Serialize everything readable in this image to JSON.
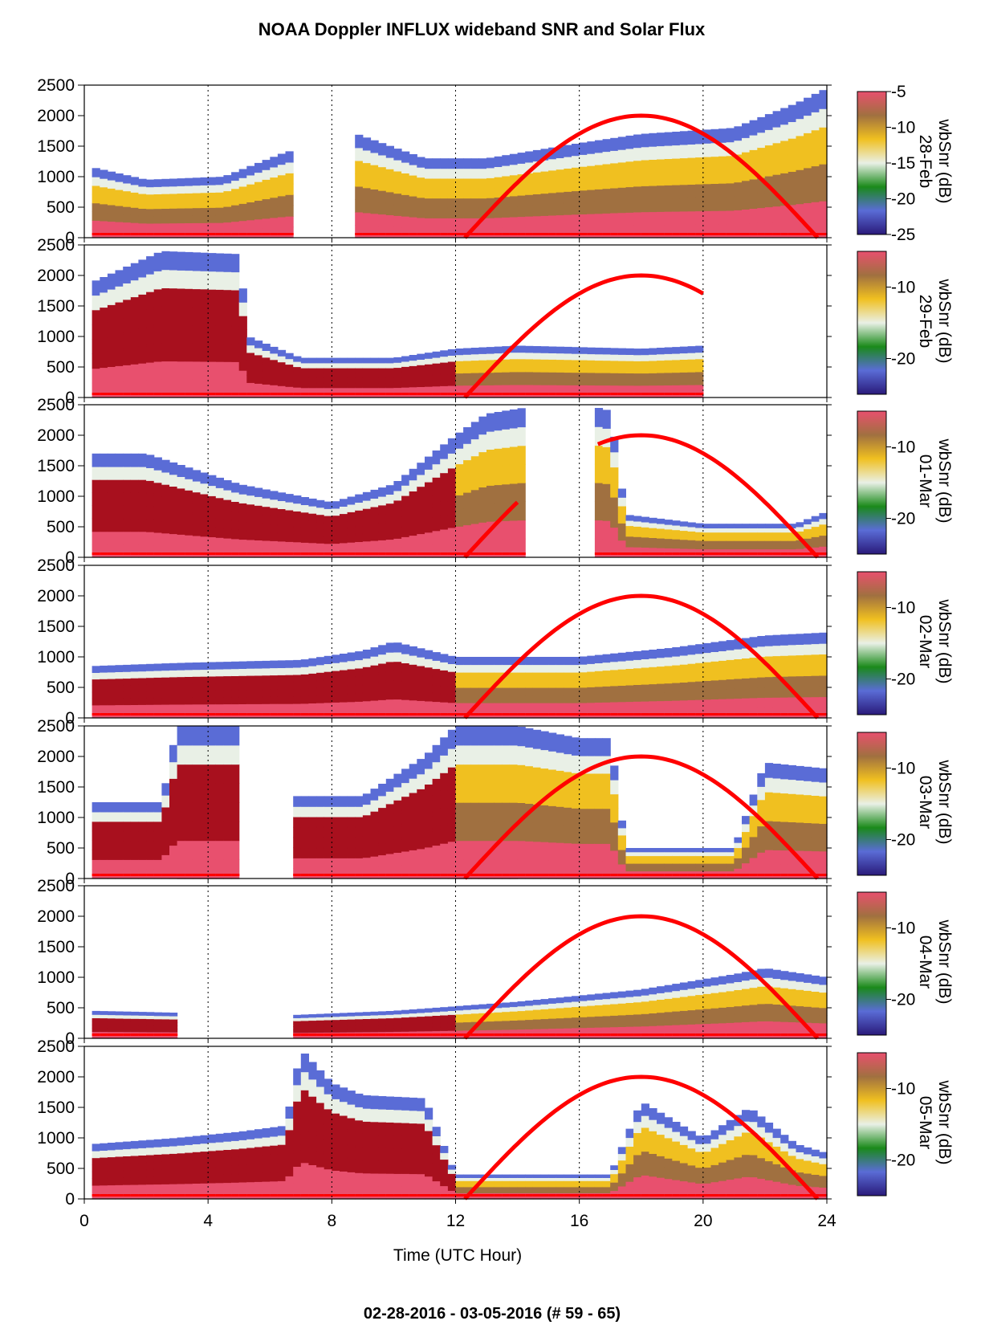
{
  "chart_data": {
    "type": "heatmap",
    "title": "NOAA Doppler INFLUX wideband SNR and Solar Flux",
    "footer": "02-28-2016 - 03-05-2016   (# 59 - 65)",
    "xlabel": "Time (UTC Hour)",
    "xlim": [
      0,
      24
    ],
    "xticks": [
      "0",
      "4",
      "8",
      "12",
      "16",
      "20",
      "24"
    ],
    "ylim": [
      0,
      2500
    ],
    "yticks": [
      "0",
      "500",
      "1000",
      "1500",
      "2000",
      "2500"
    ],
    "vertical_gridlines": [
      4,
      8,
      12,
      16,
      20
    ],
    "colorbar": {
      "quantity": "wbSnr (dB)",
      "range": [
        -25,
        -5
      ],
      "first_panel_ticks": [
        "-5",
        "-10",
        "-15",
        "-20",
        "-25"
      ],
      "other_panel_ticks": [
        "-10",
        "-20"
      ],
      "colors": [
        "#2a1a7a",
        "#5a6cd6",
        "#1a8a1a",
        "#e9f0e6",
        "#f0c020",
        "#a07040",
        "#e8506e",
        "#a8101e"
      ]
    },
    "solar_flux_curve": {
      "color": "#ff0000",
      "start_hour": 12.3,
      "peak_hour": 18,
      "end_hour": 23.7,
      "peak_value": 2000
    },
    "panels": [
      {
        "date": "28-Feb",
        "coverage_hours": [
          [
            0.3,
            6.7
          ],
          [
            8.8,
            24
          ]
        ],
        "top_height_profile": [
          [
            0.3,
            1150
          ],
          [
            2,
            950
          ],
          [
            4.5,
            1000
          ],
          [
            6.5,
            1400
          ],
          [
            8.8,
            1700
          ],
          [
            11,
            1300
          ],
          [
            13,
            1300
          ],
          [
            16,
            1550
          ],
          [
            18,
            1700
          ],
          [
            21,
            1800
          ],
          [
            23,
            2200
          ],
          [
            24,
            2450
          ]
        ],
        "curve_visible_hours": [
          12.3,
          23.7
        ]
      },
      {
        "date": "29-Feb",
        "coverage_hours": [
          [
            0.3,
            20
          ]
        ],
        "top_height_profile": [
          [
            0.3,
            1900
          ],
          [
            2.5,
            2400
          ],
          [
            5,
            2350
          ],
          [
            5.3,
            1000
          ],
          [
            7,
            650
          ],
          [
            10,
            650
          ],
          [
            12,
            800
          ],
          [
            14,
            850
          ],
          [
            18,
            800
          ],
          [
            20,
            850
          ]
        ],
        "curve_visible_hours": [
          12.3,
          20
        ]
      },
      {
        "date": "01-Mar",
        "coverage_hours": [
          [
            0.3,
            14.2
          ],
          [
            16.6,
            24
          ]
        ],
        "top_height_profile": [
          [
            0.3,
            1700
          ],
          [
            2,
            1700
          ],
          [
            5,
            1200
          ],
          [
            8,
            900
          ],
          [
            10,
            1200
          ],
          [
            12,
            2000
          ],
          [
            13,
            2350
          ],
          [
            14.2,
            2450
          ],
          [
            16.6,
            2450
          ],
          [
            17,
            2400
          ],
          [
            17.5,
            700
          ],
          [
            20,
            550
          ],
          [
            23,
            550
          ],
          [
            24,
            750
          ]
        ],
        "curve_visible_hours": [
          12.3,
          14
        ],
        "curve_visible_hours_2": [
          16.6,
          23.7
        ]
      },
      {
        "date": "02-Mar",
        "coverage_hours": [
          [
            0.3,
            24
          ]
        ],
        "top_height_profile": [
          [
            0.3,
            850
          ],
          [
            3,
            900
          ],
          [
            7,
            950
          ],
          [
            9,
            1100
          ],
          [
            10,
            1250
          ],
          [
            12,
            1000
          ],
          [
            16,
            1000
          ],
          [
            19,
            1150
          ],
          [
            22,
            1350
          ],
          [
            24,
            1400
          ]
        ],
        "curve_visible_hours": [
          12.3,
          23.7
        ]
      },
      {
        "date": "03-Mar",
        "coverage_hours": [
          [
            0.3,
            5
          ],
          [
            6.7,
            24
          ]
        ],
        "top_height_profile": [
          [
            0.3,
            1250
          ],
          [
            2.5,
            1250
          ],
          [
            3,
            2500
          ],
          [
            5,
            2500
          ],
          [
            6.7,
            1350
          ],
          [
            9,
            1350
          ],
          [
            11,
            2000
          ],
          [
            12,
            2500
          ],
          [
            14,
            2500
          ],
          [
            16,
            2300
          ],
          [
            17,
            2300
          ],
          [
            17.5,
            500
          ],
          [
            21,
            500
          ],
          [
            22,
            1900
          ],
          [
            24,
            1800
          ]
        ],
        "curve_visible_hours": [
          12.3,
          23.7
        ]
      },
      {
        "date": "04-Mar",
        "coverage_hours": [
          [
            0.3,
            3
          ],
          [
            6.7,
            24
          ]
        ],
        "top_height_profile": [
          [
            0.3,
            450
          ],
          [
            3,
            420
          ],
          [
            6.7,
            380
          ],
          [
            10,
            450
          ],
          [
            14,
            600
          ],
          [
            18,
            800
          ],
          [
            21,
            1050
          ],
          [
            22,
            1150
          ],
          [
            24,
            1000
          ]
        ],
        "curve_visible_hours": [
          12.3,
          23.7
        ]
      },
      {
        "date": "05-Mar",
        "coverage_hours": [
          [
            0.3,
            24
          ]
        ],
        "top_height_profile": [
          [
            0.3,
            900
          ],
          [
            3,
            1000
          ],
          [
            5,
            1100
          ],
          [
            6.5,
            1200
          ],
          [
            7,
            2450
          ],
          [
            8,
            1900
          ],
          [
            9,
            1700
          ],
          [
            11,
            1650
          ],
          [
            12,
            400
          ],
          [
            17,
            400
          ],
          [
            18,
            1600
          ],
          [
            20,
            1000
          ],
          [
            21.5,
            1500
          ],
          [
            23,
            900
          ],
          [
            24,
            750
          ]
        ],
        "curve_visible_hours": [
          12.3,
          23.7
        ]
      }
    ]
  }
}
